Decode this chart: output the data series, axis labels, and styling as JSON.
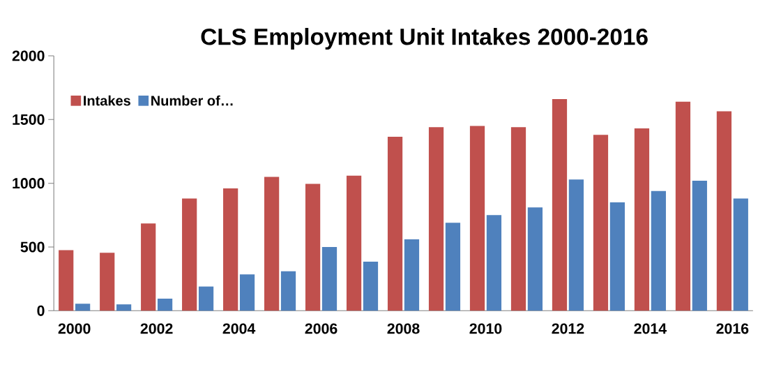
{
  "chart_data": {
    "type": "bar",
    "title": "CLS Employment Unit Intakes 2000-2016",
    "categories": [
      "2000",
      null,
      "2002",
      null,
      "2004",
      null,
      "2006",
      null,
      "2008",
      null,
      "2010",
      null,
      "2012",
      null,
      "2014",
      null,
      "2016"
    ],
    "series": [
      {
        "name": "Intakes",
        "color": "#c0504d",
        "values": [
          475,
          455,
          685,
          880,
          960,
          1050,
          995,
          1060,
          1365,
          1440,
          1450,
          1440,
          1660,
          1380,
          1430,
          1640,
          1565
        ]
      },
      {
        "name": "Number of…",
        "color": "#4f81bd",
        "values": [
          55,
          50,
          95,
          190,
          285,
          310,
          500,
          385,
          560,
          690,
          750,
          810,
          1030,
          850,
          940,
          1020,
          880
        ]
      }
    ],
    "ylim": [
      0,
      2000
    ],
    "yticks": [
      0,
      500,
      1000,
      1500,
      2000
    ],
    "legend": "top left"
  }
}
